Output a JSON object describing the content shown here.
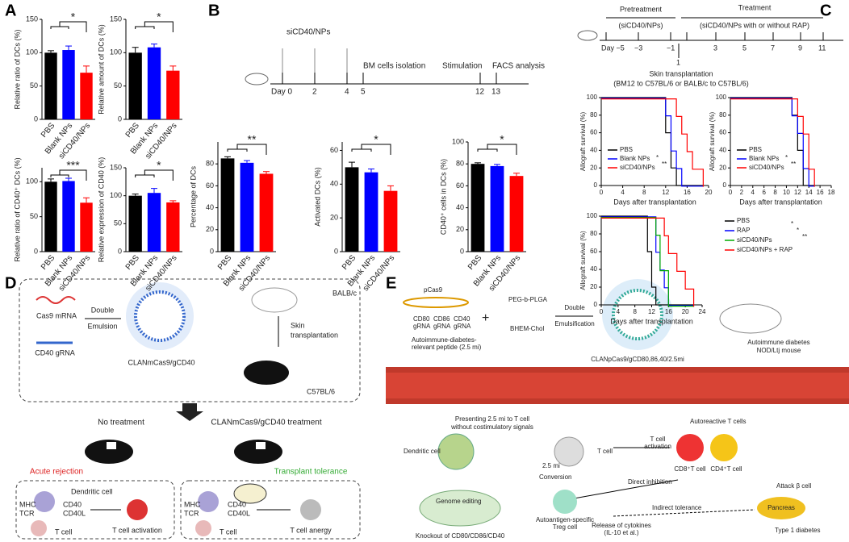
{
  "panel_labels": [
    "A",
    "B",
    "C",
    "D",
    "E"
  ],
  "chart_data": [
    {
      "type": "bar",
      "ylabel": "Relative ratio of DCs (%)",
      "categories": [
        "PBS",
        "Blank NPs",
        "siCD40/NPs"
      ],
      "values": [
        100,
        104,
        70
      ],
      "errors": [
        3,
        6,
        10
      ],
      "colors": [
        "#000000",
        "#0000ff",
        "#ff0000"
      ],
      "ylim": [
        0,
        150
      ],
      "yticks": [
        0,
        50,
        100,
        150
      ],
      "annotations": [
        "*"
      ]
    },
    {
      "type": "bar",
      "ylabel": "Relative amount of DCs (%)",
      "categories": [
        "PBS",
        "Blank NPs",
        "siCD40/NPs"
      ],
      "values": [
        100,
        108,
        73
      ],
      "errors": [
        8,
        5,
        7
      ],
      "colors": [
        "#000000",
        "#0000ff",
        "#ff0000"
      ],
      "ylim": [
        0,
        150
      ],
      "yticks": [
        0,
        50,
        100,
        150
      ],
      "annotations": [
        "*"
      ]
    },
    {
      "type": "bar",
      "ylabel": "Relative ratio of CD40⁺ DCs (%)",
      "categories": [
        "PBS",
        "Blank NPs",
        "siCD40/NPs"
      ],
      "values": [
        100,
        101,
        70
      ],
      "errors": [
        4,
        4,
        7
      ],
      "colors": [
        "#000000",
        "#0000ff",
        "#ff0000"
      ],
      "ylim": [
        0,
        120
      ],
      "yticks": [
        0,
        50,
        100
      ],
      "annotations": [
        "***"
      ]
    },
    {
      "type": "bar",
      "ylabel": "Relative expression of CD40 (%)",
      "categories": [
        "PBS",
        "Blank NPs",
        "siCD40/NPs"
      ],
      "values": [
        100,
        105,
        88
      ],
      "errors": [
        3,
        8,
        3
      ],
      "colors": [
        "#000000",
        "#0000ff",
        "#ff0000"
      ],
      "ylim": [
        0,
        150
      ],
      "yticks": [
        0,
        50,
        100,
        150
      ],
      "annotations": [
        "*"
      ]
    },
    {
      "type": "bar",
      "ylabel": "Percentage of DCs",
      "categories": [
        "PBS",
        "Blank NPs",
        "siCD40/NPs"
      ],
      "values": [
        85,
        81,
        71
      ],
      "errors": [
        1.5,
        2,
        2
      ],
      "colors": [
        "#000000",
        "#0000ff",
        "#ff0000"
      ],
      "ylim": [
        0,
        100
      ],
      "yticks": [
        0,
        20,
        40,
        60,
        80
      ],
      "annotations": [
        "**"
      ]
    },
    {
      "type": "bar",
      "ylabel": "Activated DCs (%)",
      "categories": [
        "PBS",
        "Blank NPs",
        "siCD40/NPs"
      ],
      "values": [
        50,
        47,
        36
      ],
      "errors": [
        3,
        2,
        3
      ],
      "colors": [
        "#000000",
        "#0000ff",
        "#ff0000"
      ],
      "ylim": [
        0,
        65
      ],
      "yticks": [
        0,
        20,
        40,
        60
      ],
      "annotations": [
        "*"
      ]
    },
    {
      "type": "bar",
      "ylabel": "CD40⁺ cells in DCs (%)",
      "categories": [
        "PBS",
        "Blank NPs",
        "siCD40/NPs"
      ],
      "values": [
        80,
        78,
        69
      ],
      "errors": [
        1,
        1.5,
        2.5
      ],
      "colors": [
        "#000000",
        "#0000ff",
        "#ff0000"
      ],
      "ylim": [
        0,
        100
      ],
      "yticks": [
        0,
        20,
        40,
        60,
        80,
        100
      ],
      "annotations": [
        "*"
      ]
    },
    {
      "type": "line",
      "ylabel": "Allograft survival (%)",
      "xlabel": "Days after transplantation",
      "x": [
        0,
        12,
        13,
        14,
        15,
        16,
        17,
        18,
        19
      ],
      "series": [
        {
          "name": "PBS",
          "color": "#000000",
          "values": [
            100,
            60,
            20,
            0,
            0,
            0,
            0,
            0,
            0
          ]
        },
        {
          "name": "Blank NPs",
          "color": "#0000ff",
          "values": [
            100,
            80,
            40,
            20,
            0,
            0,
            0,
            0,
            0
          ]
        },
        {
          "name": "siCD40/NPs",
          "color": "#ff0000",
          "values": [
            100,
            100,
            100,
            80,
            60,
            40,
            20,
            20,
            0
          ]
        }
      ],
      "xlim": [
        0,
        20
      ],
      "xticks": [
        0,
        4,
        8,
        12,
        16,
        20
      ],
      "ylim": [
        0,
        100
      ],
      "yticks": [
        0,
        20,
        40,
        60,
        80,
        100
      ],
      "legend": "lower left",
      "annotations": [
        "*",
        "**"
      ]
    },
    {
      "type": "line",
      "ylabel": "Allograft survival (%)",
      "xlabel": "Days after transplantation",
      "x": [
        0,
        11,
        12,
        13,
        14,
        15
      ],
      "series": [
        {
          "name": "PBS",
          "color": "#000000",
          "values": [
            100,
            80,
            40,
            0,
            0,
            0
          ]
        },
        {
          "name": "Blank NPs",
          "color": "#0000ff",
          "values": [
            100,
            80,
            60,
            20,
            0,
            0
          ]
        },
        {
          "name": "siCD40/NPs",
          "color": "#ff0000",
          "values": [
            100,
            100,
            80,
            60,
            20,
            0
          ]
        }
      ],
      "xlim": [
        0,
        18
      ],
      "xticks": [
        0,
        2,
        4,
        6,
        8,
        10,
        12,
        14,
        16,
        18
      ],
      "ylim": [
        0,
        100
      ],
      "yticks": [
        0,
        20,
        40,
        60,
        80,
        100
      ],
      "legend": "lower left",
      "annotations": [
        "*",
        "**"
      ]
    },
    {
      "type": "line",
      "ylabel": "Allograft survival (%)",
      "xlabel": "Days after transplantation",
      "x": [
        0,
        11,
        12,
        13,
        14,
        15,
        16,
        18,
        20,
        22
      ],
      "series": [
        {
          "name": "PBS",
          "color": "#000000",
          "values": [
            100,
            60,
            20,
            0,
            0,
            0,
            0,
            0,
            0,
            0
          ]
        },
        {
          "name": "RAP",
          "color": "#0000ff",
          "values": [
            100,
            100,
            100,
            60,
            40,
            20,
            0,
            0,
            0,
            0
          ]
        },
        {
          "name": "siCD40/NPs",
          "color": "#00aa00",
          "values": [
            100,
            100,
            100,
            80,
            40,
            40,
            0,
            0,
            0,
            0
          ]
        },
        {
          "name": "siCD40/NPs + RAP",
          "color": "#ff0000",
          "values": [
            100,
            100,
            100,
            100,
            100,
            80,
            60,
            40,
            20,
            0
          ]
        }
      ],
      "xlim": [
        0,
        24
      ],
      "xticks": [
        0,
        4,
        8,
        12,
        16,
        20,
        24
      ],
      "ylim": [
        0,
        100
      ],
      "yticks": [
        0,
        20,
        40,
        60,
        80,
        100
      ],
      "legend": "right",
      "annotations": [
        "*",
        "*",
        "**"
      ]
    }
  ],
  "timeline_b": {
    "agent": "siCD40/NPs",
    "days": [
      "Day 0",
      "2",
      "4",
      "5",
      "12",
      "13"
    ],
    "events": [
      "BM cells isolation",
      "Stimulation",
      "FACS analysis"
    ]
  },
  "timeline_c": {
    "phases": [
      "Pretreatment",
      "(siCD40/NPs)",
      "Treatment",
      "(siCD40/NPs with or without RAP)"
    ],
    "days": [
      "Day −5",
      "−3",
      "−1",
      "1",
      "3",
      "5",
      "7",
      "9",
      "11"
    ],
    "event": [
      "Skin transplantation",
      "(BM12 to C57BL/6 or BALB/c to C57BL/6)"
    ]
  },
  "diagram_d": {
    "texts": [
      "Cas9 mRNA",
      "CD40 gRNA",
      "Double",
      "Emulsion",
      "CLANmCas9/gCD40",
      "BALB/c",
      "Skin",
      "transplantation",
      "C57BL/6",
      "No treatment",
      "CLANmCas9/gCD40 treatment",
      "Acute rejection",
      "Transplant tolerance",
      "Dendritic cell",
      "MHC",
      "TCR",
      "CD40",
      "CD40L",
      "T cell",
      "T cell activation",
      "MHC",
      "TCR",
      "CD40",
      "CD40L",
      "T cell",
      "T cell anergy"
    ]
  },
  "diagram_e": {
    "texts": [
      "pCas9",
      "CD80",
      "gRNA",
      "CD86",
      "gRNA",
      "CD40",
      "gRNA",
      "Autoimmune-diabetes-",
      "relevant peptide (2.5 mi)",
      "PEG-b-PLGA",
      "BHEM-Chol",
      "Double",
      "Emulsification",
      "CLANpCas9/gCD80,86,40/2.5mi",
      "Autoimmune diabetes",
      "NOD/Ltj mouse",
      "Presenting 2.5 mi to T cell",
      "without costimulatory signals",
      "Dendritic cell",
      "T cell",
      "Autoreactive T cells",
      "T cell",
      "activation",
      "CD8⁺T cell",
      "CD4⁺T cell",
      "Attack β cell",
      "Pancreas",
      "Type 1 diabetes",
      "Conversion",
      "Direct inhibition",
      "Indirect tolerance",
      "Autoantigen-specific",
      "Treg cell",
      "Release of cytokines",
      "(IL-10 et al.)",
      "Genome editing",
      "Knockout of CD80/CD86/CD40",
      "2.5 mi"
    ]
  }
}
